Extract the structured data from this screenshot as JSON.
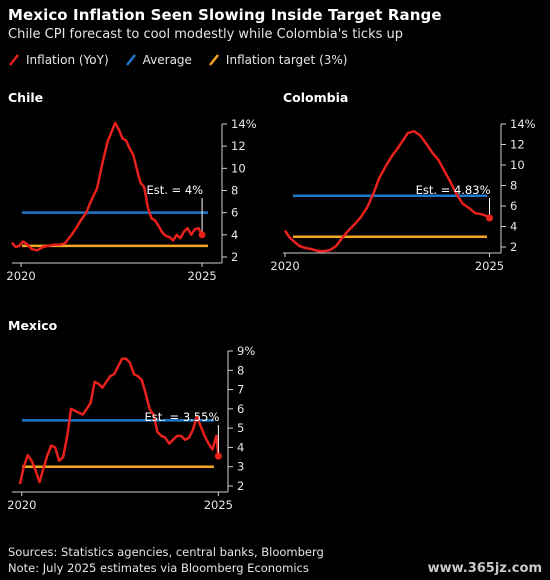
{
  "header": {
    "title": "Mexico Inflation Seen Slowing Inside Target Range",
    "subtitle": "Chile CPI forecast to cool modestly while Colombia's ticks up"
  },
  "legend": {
    "items": [
      {
        "label": "Inflation (YoY)",
        "color": "#e8211c"
      },
      {
        "label": "Average",
        "color": "#1f77c8"
      },
      {
        "label": "Inflation target (3%)",
        "color": "#f5a623"
      }
    ]
  },
  "colors": {
    "inflation": "#e8211c",
    "average": "#1f77c8",
    "target": "#f5a623",
    "axis": "#cfcfcf"
  },
  "footer": {
    "sources": "Sources: Statistics agencies, central banks, Bloomberg",
    "note": "Note: July 2025 estimates via Bloomberg Economics"
  },
  "watermark": "www.365jz.com",
  "chart_data": [
    {
      "type": "line",
      "title": "Chile",
      "x_ticks": [
        "2020",
        "2025"
      ],
      "y_ticks": [
        "2",
        "4",
        "6",
        "8",
        "10",
        "12",
        "14%"
      ],
      "ylim": [
        2,
        14
      ],
      "xlim": [
        2019.75,
        2025.55
      ],
      "average": 6.0,
      "target": 3.0,
      "estimate_label": "Est. = 4%",
      "estimate": {
        "x": 2025.0,
        "y": 4.0
      },
      "series": [
        {
          "x": [
            2019.75,
            2019.85,
            2019.95,
            2020.05,
            2020.15,
            2020.3,
            2020.45,
            2020.6,
            2020.75,
            2020.9,
            2021.05,
            2021.2,
            2021.35,
            2021.5,
            2021.65,
            2021.8,
            2021.95,
            2022.1,
            2022.25,
            2022.4,
            2022.5,
            2022.6,
            2022.7,
            2022.8,
            2022.9,
            2023.0,
            2023.1,
            2023.2,
            2023.3,
            2023.4,
            2023.5,
            2023.6,
            2023.7,
            2023.8,
            2023.9,
            2024.0,
            2024.1,
            2024.2,
            2024.3,
            2024.4,
            2024.5,
            2024.6,
            2024.7,
            2024.8,
            2024.9,
            2025.0
          ],
          "y": [
            3.3,
            2.9,
            3.0,
            3.4,
            3.2,
            2.7,
            2.6,
            2.9,
            3.0,
            3.1,
            3.1,
            3.2,
            3.8,
            4.5,
            5.3,
            6.0,
            7.2,
            8.2,
            10.5,
            12.5,
            13.3,
            14.1,
            13.5,
            12.7,
            12.5,
            11.8,
            11.2,
            9.9,
            8.7,
            8.3,
            6.5,
            5.5,
            5.3,
            4.8,
            4.2,
            3.9,
            3.8,
            3.5,
            4.0,
            3.7,
            4.3,
            4.6,
            4.0,
            4.5,
            4.6,
            4.0
          ]
        }
      ]
    },
    {
      "type": "line",
      "title": "Colombia",
      "x_ticks": [
        "2020",
        "2025"
      ],
      "y_ticks": [
        "2",
        "4",
        "6",
        "8",
        "10",
        "12",
        "14%"
      ],
      "ylim": [
        2,
        14
      ],
      "xlim": [
        2019.95,
        2025.55
      ],
      "average": 7.0,
      "target": 3.0,
      "estimate_label": "Est. = 4.83%",
      "estimate": {
        "x": 2025.0,
        "y": 4.83
      },
      "series": [
        {
          "x": [
            2020.0,
            2020.1,
            2020.2,
            2020.35,
            2020.5,
            2020.65,
            2020.8,
            2020.95,
            2021.1,
            2021.25,
            2021.4,
            2021.55,
            2021.7,
            2021.85,
            2022.0,
            2022.15,
            2022.3,
            2022.45,
            2022.6,
            2022.75,
            2022.9,
            2023.0,
            2023.15,
            2023.3,
            2023.45,
            2023.6,
            2023.75,
            2023.9,
            2024.05,
            2024.2,
            2024.35,
            2024.5,
            2024.65,
            2024.8,
            2024.95,
            2025.0
          ],
          "y": [
            3.6,
            3.0,
            2.6,
            2.1,
            1.9,
            1.8,
            1.6,
            1.6,
            1.7,
            2.1,
            2.9,
            3.6,
            4.2,
            4.9,
            5.8,
            7.1,
            8.7,
            9.8,
            10.8,
            11.6,
            12.5,
            13.1,
            13.3,
            12.9,
            12.1,
            11.2,
            10.5,
            9.4,
            8.3,
            7.1,
            6.2,
            5.8,
            5.3,
            5.2,
            5.0,
            4.83
          ]
        }
      ]
    },
    {
      "type": "line",
      "title": "Mexico",
      "x_ticks": [
        "2020",
        "2025"
      ],
      "y_ticks": [
        "2",
        "3",
        "4",
        "5",
        "6",
        "7",
        "8",
        "9%"
      ],
      "ylim": [
        2,
        9
      ],
      "xlim": [
        2019.75,
        2025.55
      ],
      "average": 5.4,
      "target": 3.0,
      "estimate_label": "Est. = 3.55%",
      "estimate": {
        "x": 2025.0,
        "y": 3.55
      },
      "series": [
        {
          "x": [
            2019.95,
            2020.05,
            2020.15,
            2020.25,
            2020.35,
            2020.45,
            2020.55,
            2020.65,
            2020.75,
            2020.85,
            2020.95,
            2021.05,
            2021.15,
            2021.25,
            2021.35,
            2021.45,
            2021.55,
            2021.65,
            2021.75,
            2021.85,
            2021.95,
            2022.05,
            2022.15,
            2022.25,
            2022.35,
            2022.45,
            2022.55,
            2022.65,
            2022.75,
            2022.85,
            2022.95,
            2023.05,
            2023.15,
            2023.25,
            2023.35,
            2023.45,
            2023.55,
            2023.65,
            2023.75,
            2023.85,
            2023.95,
            2024.05,
            2024.15,
            2024.25,
            2024.35,
            2024.45,
            2024.55,
            2024.65,
            2024.75,
            2024.85,
            2024.95,
            2025.0
          ],
          "y": [
            2.1,
            3.0,
            3.6,
            3.3,
            2.8,
            2.2,
            2.9,
            3.6,
            4.1,
            4.0,
            3.3,
            3.5,
            4.5,
            6.0,
            5.9,
            5.8,
            5.7,
            6.0,
            6.3,
            7.4,
            7.3,
            7.1,
            7.4,
            7.7,
            7.8,
            8.2,
            8.6,
            8.6,
            8.4,
            7.8,
            7.7,
            7.5,
            6.8,
            6.0,
            5.7,
            4.8,
            4.6,
            4.5,
            4.2,
            4.4,
            4.6,
            4.6,
            4.4,
            4.5,
            4.9,
            5.6,
            5.1,
            4.6,
            4.2,
            3.9,
            4.6,
            3.55
          ]
        }
      ]
    }
  ]
}
